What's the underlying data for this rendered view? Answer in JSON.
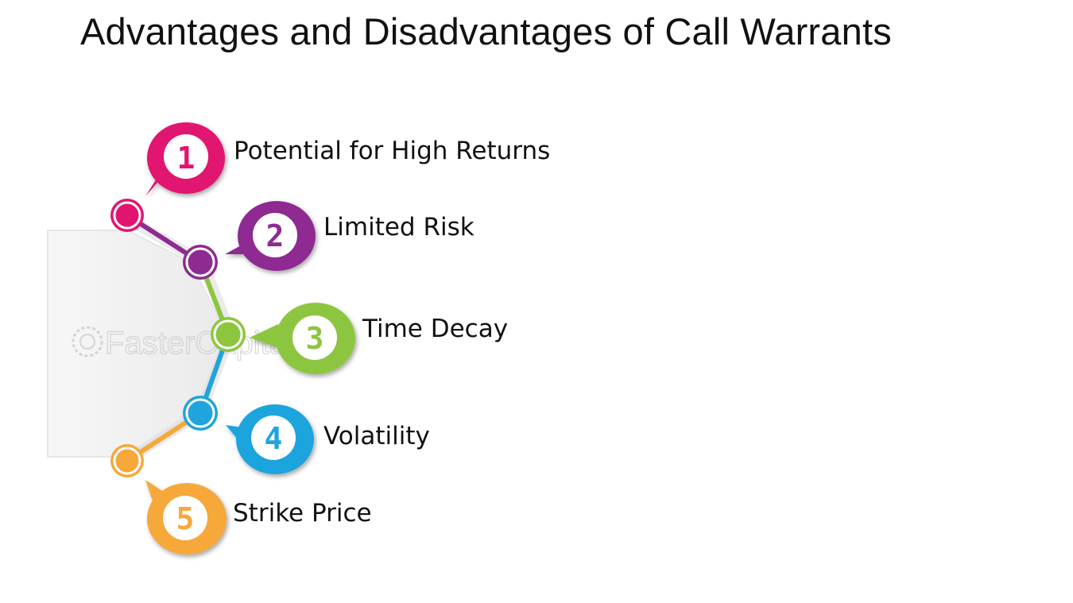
{
  "title": "Advantages and Disadvantages of Call Warrants",
  "watermark": "FasterCapital",
  "items": [
    {
      "number": "1",
      "label": "Potential for High Returns",
      "color": "#e1156f"
    },
    {
      "number": "2",
      "label": "Limited Risk",
      "color": "#8e2b91"
    },
    {
      "number": "3",
      "label": "Time Decay",
      "color": "#8cc63f"
    },
    {
      "number": "4",
      "label": "Volatility",
      "color": "#1fa4dd"
    },
    {
      "number": "5",
      "label": "Strike Price",
      "color": "#f6a83a"
    }
  ]
}
